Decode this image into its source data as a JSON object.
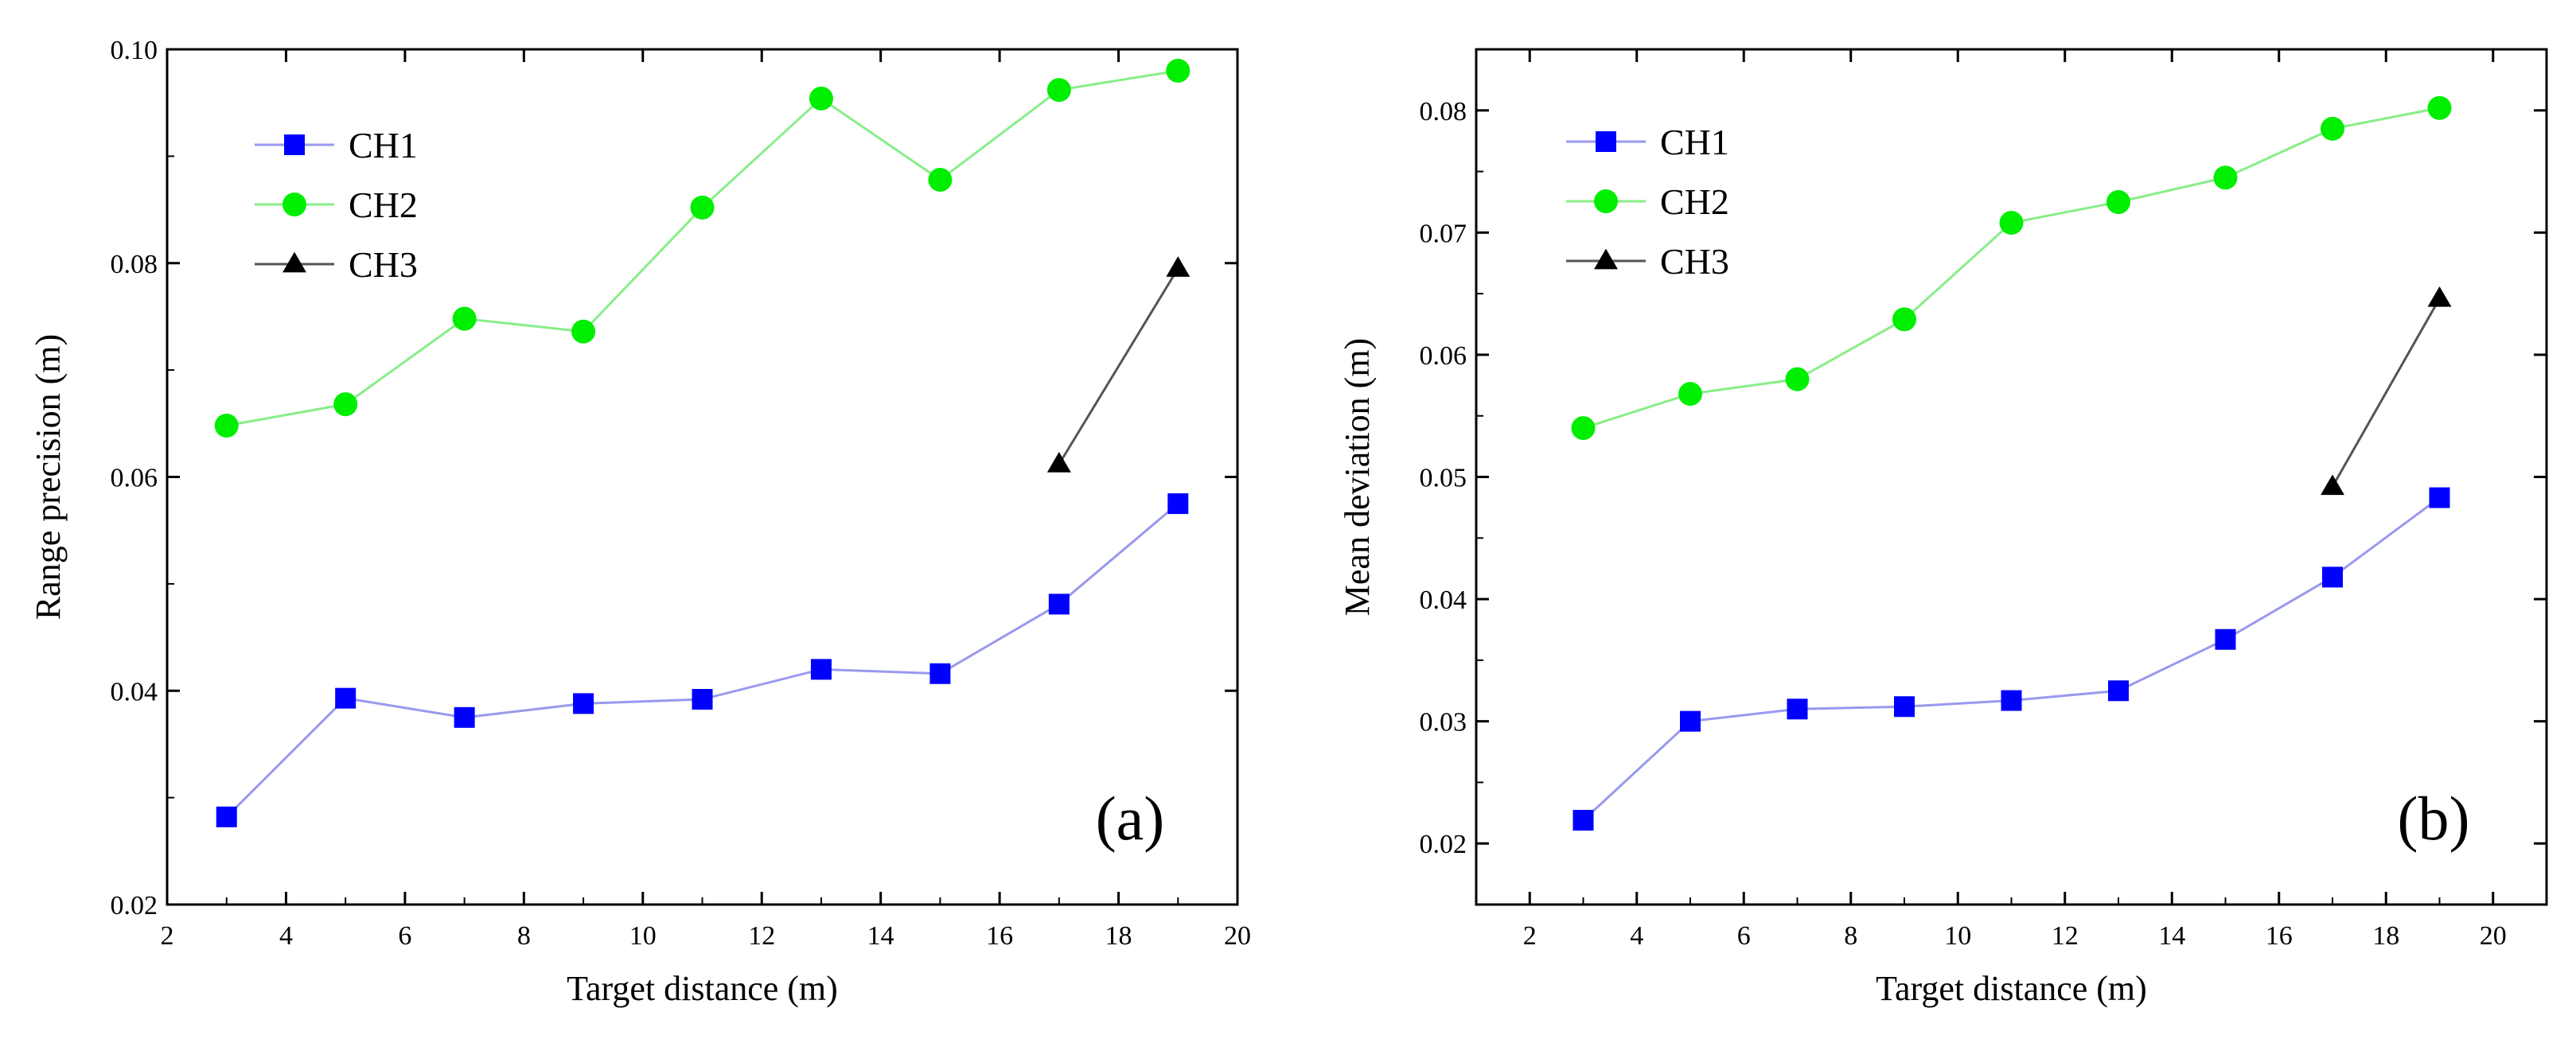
{
  "chart_data": [
    {
      "type": "line",
      "panel_label": "(a)",
      "xlabel": "Target distance (m)",
      "ylabel": "Range precision (m)",
      "xlim": [
        2,
        20
      ],
      "ylim": [
        0.02,
        0.1
      ],
      "xticks": [
        2,
        4,
        6,
        8,
        10,
        12,
        14,
        16,
        18,
        20
      ],
      "yticks": [
        0.02,
        0.04,
        0.06,
        0.08,
        0.1
      ],
      "xtick_labels": [
        "2",
        "4",
        "6",
        "8",
        "10",
        "12",
        "14",
        "16",
        "18",
        "20"
      ],
      "ytick_labels": [
        "0.02",
        "0.04",
        "0.06",
        "0.08",
        "0.10"
      ],
      "grid": false,
      "legend_position": "top-left",
      "series": [
        {
          "name": "CH1",
          "marker": "square",
          "marker_color": "#0000ff",
          "line_color": "#9999ee",
          "x": [
            3,
            5,
            7,
            9,
            11,
            13,
            15,
            17,
            19
          ],
          "y": [
            0.0282,
            0.0393,
            0.0375,
            0.0388,
            0.0392,
            0.042,
            0.0416,
            0.0481,
            0.0575
          ]
        },
        {
          "name": "CH2",
          "marker": "circle",
          "marker_color": "#00ee00",
          "line_color": "#88ee88",
          "x": [
            3,
            5,
            7,
            9,
            11,
            13,
            15,
            17,
            19
          ],
          "y": [
            0.0648,
            0.0668,
            0.0748,
            0.0736,
            0.0852,
            0.0954,
            0.0878,
            0.0962,
            0.098
          ]
        },
        {
          "name": "CH3",
          "marker": "triangle",
          "marker_color": "#000000",
          "line_color": "#555555",
          "x": [
            17,
            19
          ],
          "y": [
            0.0612,
            0.0795
          ]
        }
      ]
    },
    {
      "type": "line",
      "panel_label": "(b)",
      "xlabel": "Target distance (m)",
      "ylabel": "Mean deviation (m)",
      "xlim": [
        1,
        21
      ],
      "ylim": [
        0.015,
        0.085
      ],
      "xticks": [
        2,
        4,
        6,
        8,
        10,
        12,
        14,
        16,
        18,
        20
      ],
      "yticks": [
        0.02,
        0.03,
        0.04,
        0.05,
        0.06,
        0.07,
        0.08
      ],
      "xtick_labels": [
        "2",
        "4",
        "6",
        "8",
        "10",
        "12",
        "14",
        "16",
        "18",
        "20"
      ],
      "ytick_labels": [
        "0.02",
        "0.03",
        "0.04",
        "0.05",
        "0.06",
        "0.07",
        "0.08"
      ],
      "grid": false,
      "legend_position": "top-left",
      "series": [
        {
          "name": "CH1",
          "marker": "square",
          "marker_color": "#0000ff",
          "line_color": "#9999ee",
          "x": [
            3,
            5,
            7,
            9,
            11,
            13,
            15,
            17,
            19
          ],
          "y": [
            0.0219,
            0.03,
            0.031,
            0.0312,
            0.0317,
            0.0325,
            0.0367,
            0.0418,
            0.0483
          ]
        },
        {
          "name": "CH2",
          "marker": "circle",
          "marker_color": "#00ee00",
          "line_color": "#88ee88",
          "x": [
            3,
            5,
            7,
            9,
            11,
            13,
            15,
            17,
            19
          ],
          "y": [
            0.054,
            0.0568,
            0.058,
            0.0629,
            0.0708,
            0.0725,
            0.0745,
            0.0785,
            0.0802
          ]
        },
        {
          "name": "CH3",
          "marker": "triangle",
          "marker_color": "#000000",
          "line_color": "#555555",
          "x": [
            17,
            19
          ],
          "y": [
            0.0492,
            0.0646
          ]
        }
      ]
    }
  ]
}
